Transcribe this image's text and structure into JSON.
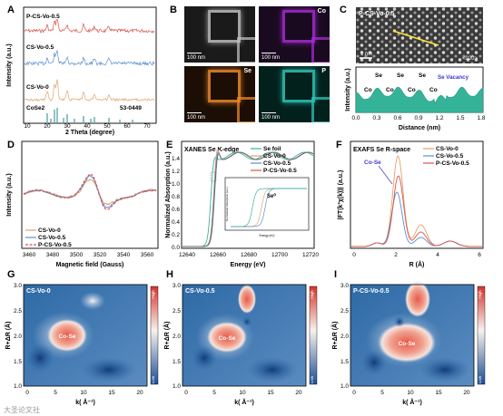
{
  "figure": {
    "panels": {
      "A": {
        "letter": "A",
        "xlabel": "2 Theta (degree)",
        "ylabel": "Intensity (a.u.)",
        "xticks": [
          "10",
          "20",
          "30",
          "40",
          "50",
          "60",
          "70"
        ],
        "series_labels": [
          "P-CS-Vo-0.5",
          "CS-Vo-0.5",
          "CS-Vo-0"
        ],
        "ref_label": "CoSe2",
        "ref_code": "53-0449",
        "colors": [
          "#d9544d",
          "#5b8fd0",
          "#e2a26c"
        ]
      },
      "B": {
        "letter": "B",
        "tiles": [
          {
            "label": "",
            "scale": "100 nm",
            "bg": "#1a1a1a",
            "fg": "#bdbdbd"
          },
          {
            "label": "Co",
            "scale": "100 nm",
            "bg": "#1a0a20",
            "fg": "#a32ad0"
          },
          {
            "label": "Se",
            "scale": "100 nm",
            "bg": "#1c0e04",
            "fg": "#e8862c"
          },
          {
            "label": "P",
            "scale": "100 nm",
            "bg": "#02201c",
            "fg": "#2fc4b4"
          }
        ]
      },
      "C": {
        "letter": "C",
        "image_label": "P-CS-Vo-0.5",
        "scale": "1 nm",
        "zone": "<020>",
        "profile_labels": {
          "co": "Co",
          "se": "Se",
          "vacancy": "Se Vacancy"
        },
        "xlabel": "Distance (nm)",
        "ylabel": "Intensity (a.u.)",
        "xticks": [
          "0.0",
          "0.3",
          "0.6",
          "0.9",
          "1.2",
          "1.5",
          "1.8"
        ],
        "profile_color": "#1f9b7f"
      },
      "D": {
        "letter": "D",
        "xlabel": "Magnetic field (Gauss)",
        "ylabel": "Intensity (a.u.)",
        "xticks": [
          "3460",
          "3480",
          "3500",
          "3520",
          "3540",
          "3560"
        ],
        "legend": [
          "CS-Vo-0",
          "CS-Vo-0.5",
          "P-CS-Vo-0.5"
        ],
        "colors": [
          "#e2a26c",
          "#5b8fd0",
          "#d9544d"
        ]
      },
      "E": {
        "letter": "E",
        "title": "XANES Se K-edge",
        "xlabel": "Energy (eV)",
        "ylabel": "Normalized Absorption (a.u.)",
        "xticks": [
          "12640",
          "12660",
          "12680",
          "12700",
          "12720"
        ],
        "yticks": [
          "0.0",
          "0.2",
          "0.4",
          "0.6",
          "0.8",
          "1.0",
          "1.2",
          "1.4"
        ],
        "legend": [
          "Se foil",
          "CS-Vo-0",
          "CS-Vo-0.5",
          "P-CS-Vo-0.5"
        ],
        "colors": [
          "#3cb29a",
          "#e2a26c",
          "#5b8fd0",
          "#d9544d"
        ],
        "inset_label": "Se⁰",
        "inset_xlabel": "Energy (eV)",
        "inset_ylabel": "Normalized Absorption (a.u.)"
      },
      "F": {
        "letter": "F",
        "title": "EXAFS Se R-space",
        "xlabel": "R (Å)",
        "ylabel": "|FT(k³χ(k))| (a.u.)",
        "xticks": [
          "0",
          "2",
          "4",
          "6"
        ],
        "legend": [
          "CS-Vo-0",
          "CS-Vo-0.5",
          "P-CS-Vo-0.5"
        ],
        "colors": [
          "#e2a26c",
          "#5b8fd0",
          "#d9544d"
        ],
        "annotation": "Co-Se"
      },
      "G": {
        "letter": "G",
        "sample": "CS-Vo-0",
        "bond": "Co-Se",
        "ylabel": "R+ΔR (Å)",
        "xlabel": "k( Å⁻¹)",
        "high": "High",
        "low": "Low",
        "xticks": [
          "0",
          "5",
          "10",
          "15",
          "20"
        ],
        "yticks": [
          "1.0",
          "1.5",
          "2.0",
          "2.5",
          "3.0"
        ]
      },
      "H": {
        "letter": "H",
        "sample": "CS-Vo-0.5",
        "bond": "Co-Se",
        "ylabel": "R+ΔR (Å)",
        "xlabel": "k( Å⁻¹)",
        "high": "High",
        "low": "Low",
        "xticks": [
          "0",
          "5",
          "10",
          "15",
          "20"
        ],
        "yticks": [
          "1.0",
          "1.5",
          "2.0",
          "2.5",
          "3.0"
        ]
      },
      "I": {
        "letter": "I",
        "sample": "P-CS-Vo-0.5",
        "bond": "Co-Se",
        "ylabel": "R+ΔR (Å)",
        "xlabel": "k( Å⁻¹)",
        "high": "High",
        "low": "Low",
        "xticks": [
          "0",
          "5",
          "10",
          "15",
          "20"
        ],
        "yticks": [
          "1.0",
          "1.5",
          "2.0",
          "2.5",
          "3.0"
        ]
      }
    },
    "watermark": "大圣论文社"
  }
}
